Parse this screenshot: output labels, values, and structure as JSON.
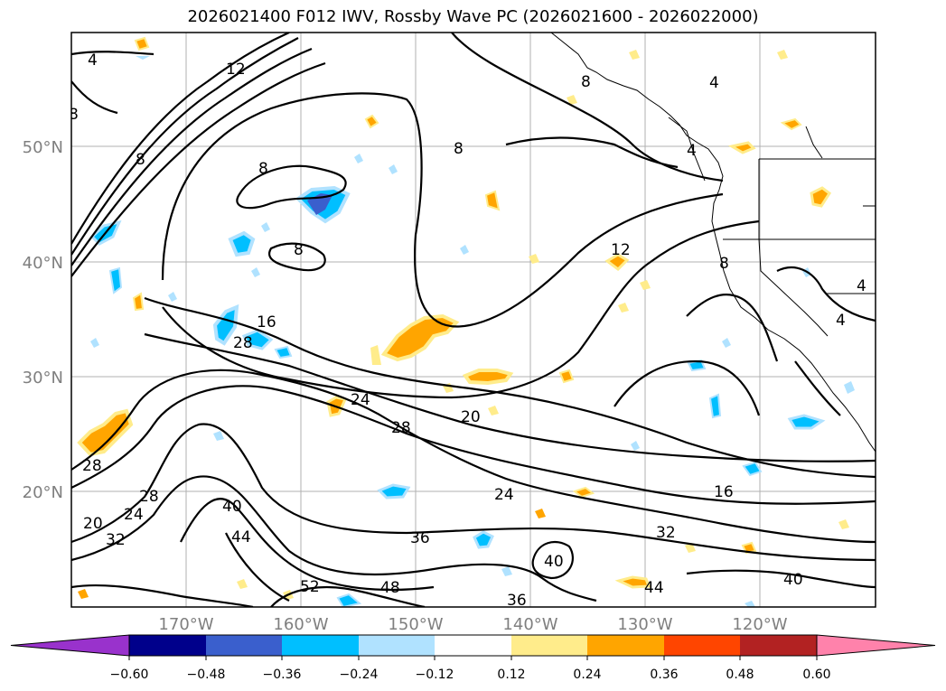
{
  "title": "2026021400 F012 IWV, Rossby Wave PC (2026021600 - 2026022000)",
  "lat_labels": [
    "50°N",
    "40°N",
    "30°N",
    "20°N"
  ],
  "lon_labels": [
    "170°W",
    "160°W",
    "150°W",
    "140°W",
    "130°W",
    "120°W"
  ],
  "contour_labels": [
    "4",
    "12",
    "8",
    "8",
    "8",
    "8",
    "8",
    "12",
    "4",
    "8",
    "4",
    "16",
    "28",
    "24",
    "28",
    "20",
    "28",
    "28",
    "24",
    "20",
    "40",
    "32",
    "44",
    "52",
    "48",
    "36",
    "24",
    "36",
    "40",
    "32",
    "16",
    "44",
    "40",
    "4",
    "8",
    "4"
  ],
  "colorbar": {
    "tick_labels": [
      "−0.60",
      "−0.48",
      "−0.36",
      "−0.24",
      "−0.12",
      "0.12",
      "0.24",
      "0.36",
      "0.48",
      "0.60"
    ],
    "colors": [
      "#9932cc",
      "#00008b",
      "#3a5fcd",
      "#00bfff",
      "#b0e2ff",
      "#ffffff",
      "#ffec8b",
      "#ffa500",
      "#ff4500",
      "#b22222",
      "#ff82ab"
    ]
  }
}
